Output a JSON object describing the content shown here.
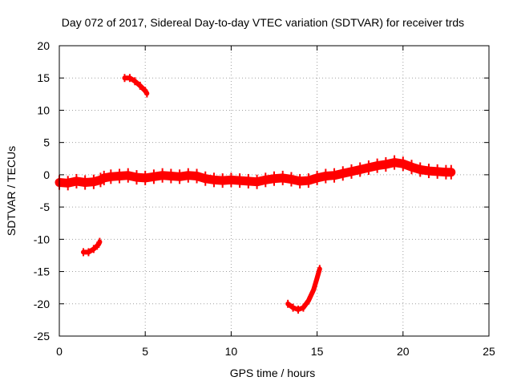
{
  "chart_data": {
    "type": "scatter",
    "title": "Day 072 of 2017, Sidereal Day-to-day VTEC variation (SDTVAR) for receiver trds",
    "xlabel": "GPS time / hours",
    "ylabel": "SDTVAR / TECUs",
    "xlim": [
      0,
      25
    ],
    "ylim": [
      -25,
      20
    ],
    "xticks": [
      0,
      5,
      10,
      15,
      20,
      25
    ],
    "yticks": [
      -25,
      -20,
      -15,
      -10,
      -5,
      0,
      5,
      10,
      15,
      20
    ],
    "grid": true,
    "color": "#ff0000",
    "series": [
      {
        "name": "main-band",
        "points": [
          [
            0.0,
            -1.2
          ],
          [
            0.5,
            -1.3
          ],
          [
            1.0,
            -1.0
          ],
          [
            1.5,
            -1.2
          ],
          [
            2.0,
            -1.1
          ],
          [
            2.4,
            -0.8
          ],
          [
            2.6,
            -0.5
          ],
          [
            3.0,
            -0.3
          ],
          [
            3.5,
            -0.2
          ],
          [
            4.0,
            -0.1
          ],
          [
            4.5,
            -0.4
          ],
          [
            5.0,
            -0.5
          ],
          [
            5.5,
            -0.3
          ],
          [
            6.0,
            -0.1
          ],
          [
            6.5,
            -0.2
          ],
          [
            7.0,
            -0.3
          ],
          [
            7.5,
            -0.1
          ],
          [
            8.0,
            -0.2
          ],
          [
            8.5,
            -0.6
          ],
          [
            9.0,
            -0.8
          ],
          [
            9.5,
            -0.9
          ],
          [
            10.0,
            -0.8
          ],
          [
            10.5,
            -0.9
          ],
          [
            11.0,
            -1.0
          ],
          [
            11.5,
            -1.1
          ],
          [
            12.0,
            -0.8
          ],
          [
            12.5,
            -0.6
          ],
          [
            13.0,
            -0.5
          ],
          [
            13.5,
            -0.7
          ],
          [
            14.0,
            -1.0
          ],
          [
            14.5,
            -0.9
          ],
          [
            15.0,
            -0.5
          ],
          [
            15.5,
            -0.2
          ],
          [
            16.0,
            -0.1
          ],
          [
            16.5,
            0.2
          ],
          [
            17.0,
            0.5
          ],
          [
            17.5,
            0.8
          ],
          [
            18.0,
            1.1
          ],
          [
            18.5,
            1.4
          ],
          [
            19.0,
            1.6
          ],
          [
            19.5,
            1.9
          ],
          [
            20.0,
            1.7
          ],
          [
            20.5,
            1.2
          ],
          [
            21.0,
            0.8
          ],
          [
            21.5,
            0.6
          ],
          [
            22.0,
            0.5
          ],
          [
            22.5,
            0.4
          ],
          [
            22.8,
            0.4
          ]
        ]
      },
      {
        "name": "arc-upper",
        "points": [
          [
            3.8,
            15.0
          ],
          [
            4.1,
            15.0
          ],
          [
            4.4,
            14.5
          ],
          [
            4.7,
            13.8
          ],
          [
            5.0,
            13.0
          ],
          [
            5.1,
            12.6
          ]
        ]
      },
      {
        "name": "arc-left",
        "points": [
          [
            1.4,
            -12.0
          ],
          [
            1.7,
            -12.0
          ],
          [
            2.0,
            -11.5
          ],
          [
            2.2,
            -11.0
          ],
          [
            2.3,
            -10.7
          ],
          [
            2.35,
            -10.4
          ]
        ]
      },
      {
        "name": "arc-bottom",
        "points": [
          [
            13.3,
            -20.0
          ],
          [
            13.6,
            -20.6
          ],
          [
            13.9,
            -20.9
          ],
          [
            14.2,
            -20.6
          ],
          [
            14.5,
            -19.5
          ],
          [
            14.8,
            -17.8
          ],
          [
            15.0,
            -16.0
          ],
          [
            15.15,
            -14.6
          ]
        ]
      }
    ]
  }
}
